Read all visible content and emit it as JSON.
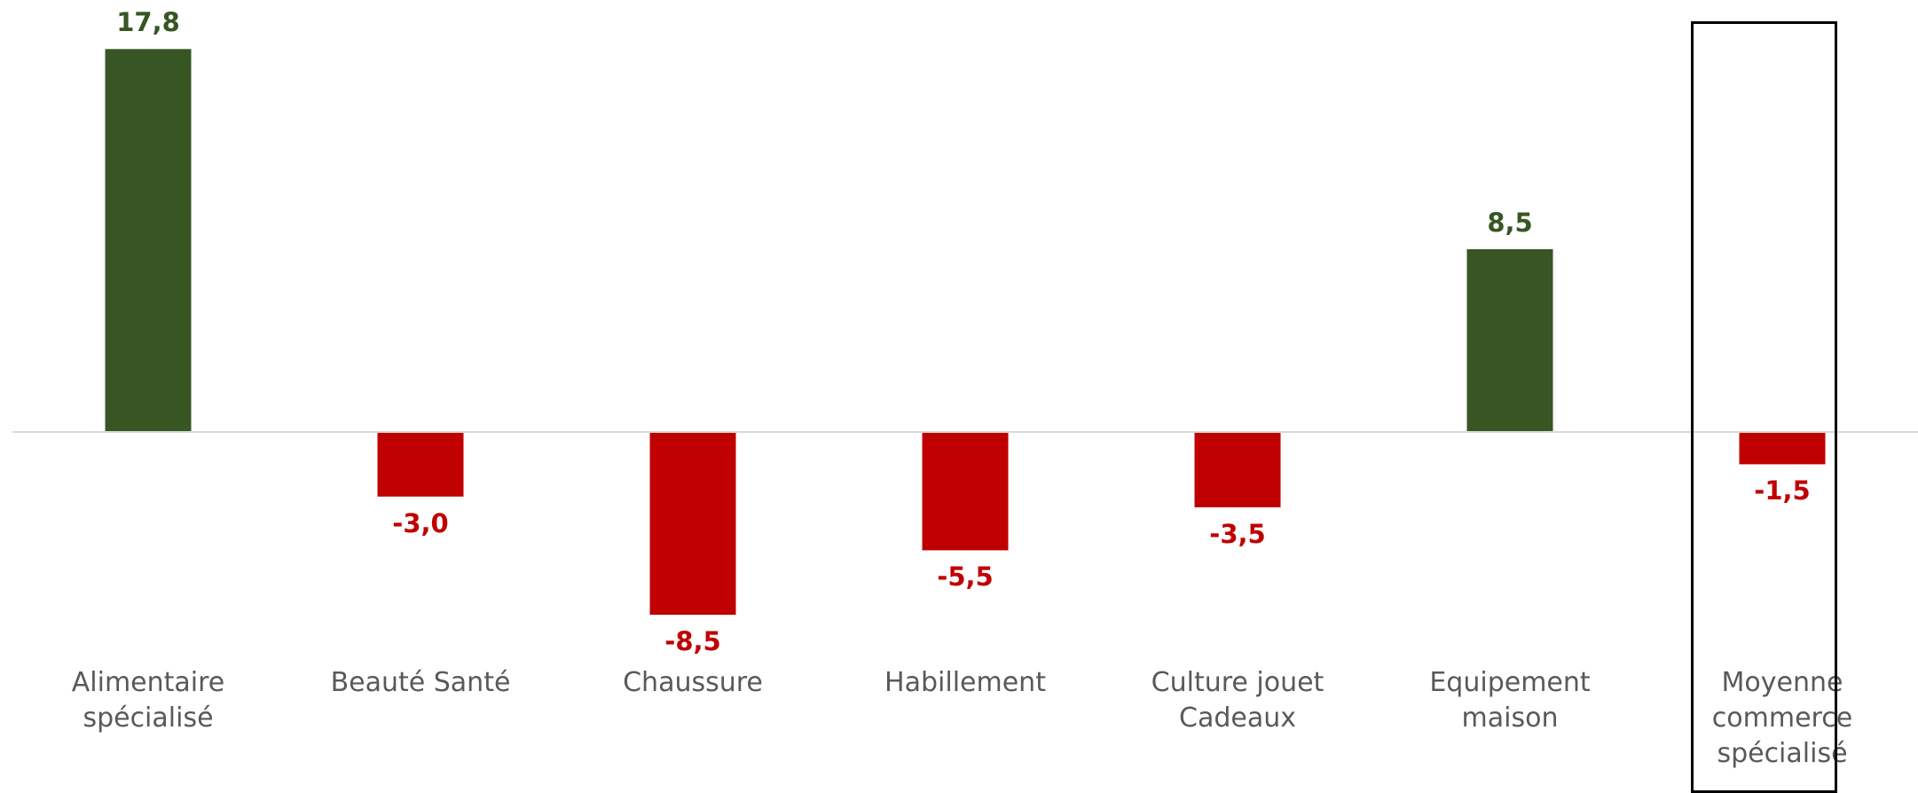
{
  "chart_data": {
    "type": "bar",
    "categories": [
      [
        "Alimentaire",
        "spécialisé"
      ],
      [
        "Beauté Santé"
      ],
      [
        "Chaussure"
      ],
      [
        "Habillement"
      ],
      [
        "Culture jouet",
        "Cadeaux"
      ],
      [
        "Equipement",
        "maison"
      ],
      [
        "Moyenne",
        "commerce",
        "spécialisé"
      ]
    ],
    "values": [
      17.8,
      -3.0,
      -8.5,
      -5.5,
      -3.5,
      8.5,
      -1.5
    ],
    "value_labels": [
      "17,8",
      "-3,0",
      "-8,5",
      "-5,5",
      "-3,5",
      "8,5",
      "-1,5"
    ],
    "highlighted_category_index": 6,
    "colors": {
      "positive": "#375623",
      "negative": "#C00000",
      "category_text": "#595959",
      "baseline": "#D9D9D9",
      "highlight_border": "#000000"
    },
    "title": "",
    "xlabel": "",
    "ylabel": "",
    "grid": false,
    "legend": "none"
  }
}
